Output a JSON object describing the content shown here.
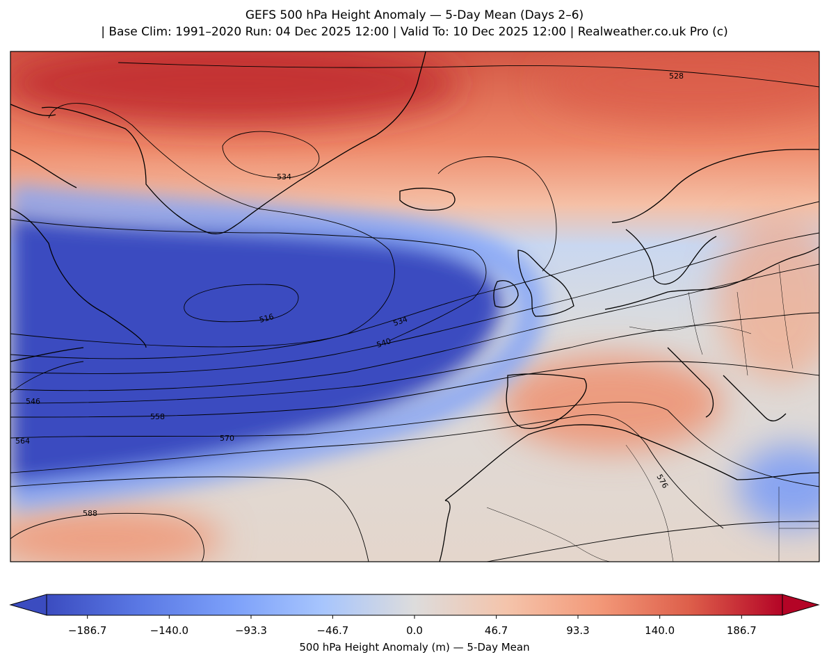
{
  "header": {
    "title_line1": "GEFS 500 hPa Height Anomaly — 5-Day Mean (Days 2–6)",
    "title_line2": "| Base Clim: 1991–2020 Run: 04 Dec 2025 12:00 | Valid To: 10 Dec 2025 12:00 | Realweather.co.uk Pro (c)"
  },
  "map": {
    "region": "North Atlantic and Europe",
    "contour_labels": [
      "528",
      "534",
      "516",
      "534",
      "540",
      "546",
      "558",
      "564",
      "570",
      "576",
      "588"
    ],
    "colors": {
      "strong_negative": "#3b4cc0",
      "neutral": "#dddcdc",
      "strong_positive": "#b40426",
      "coastline": "#000000"
    }
  },
  "colorbar": {
    "ticks": [
      "−186.7",
      "−140.0",
      "−93.3",
      "−46.7",
      "0.0",
      "46.7",
      "93.3",
      "140.0",
      "186.7"
    ],
    "tick_values": [
      -186.7,
      -140.0,
      -93.3,
      -46.7,
      0.0,
      46.7,
      93.3,
      140.0,
      186.7
    ],
    "range": [
      -210,
      210
    ],
    "label": "500 hPa Height Anomaly (m) — 5-Day Mean",
    "colormap": "coolwarm",
    "extend": "both"
  }
}
